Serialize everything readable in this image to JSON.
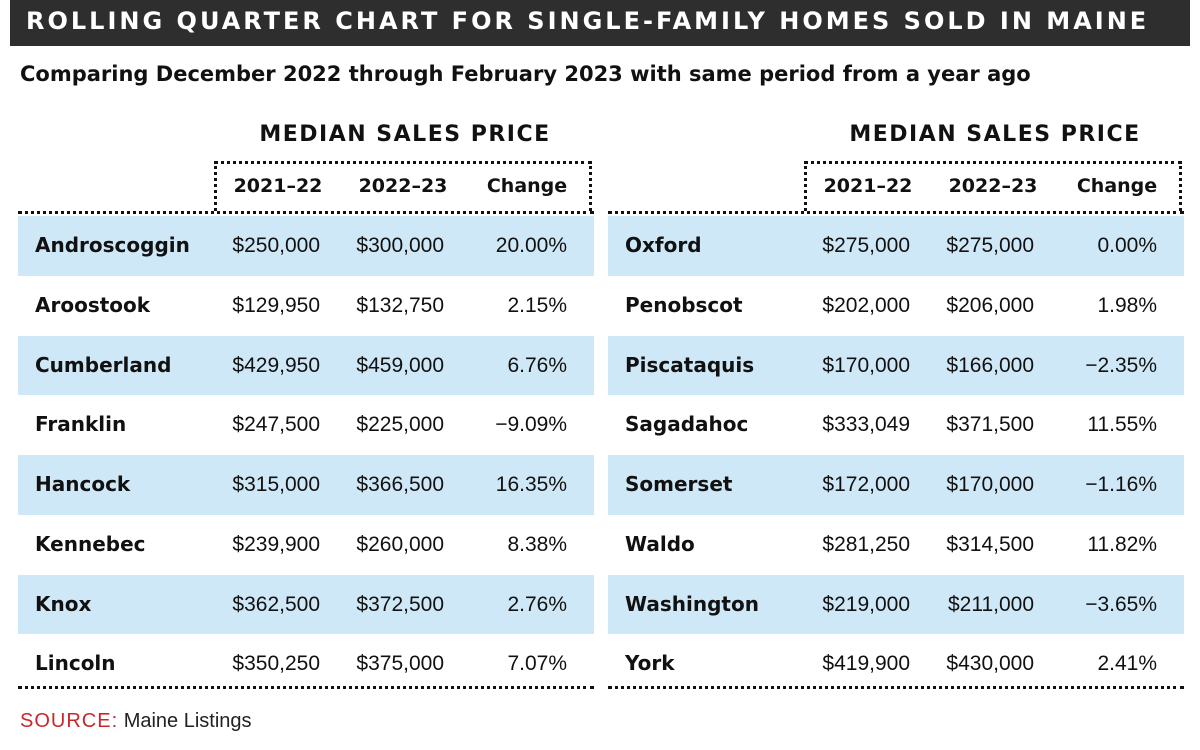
{
  "banner": {
    "title": "ROLLING QUARTER CHART FOR SINGLE-FAMILY HOMES SOLD IN MAINE"
  },
  "subtitle": "Comparing December 2022 through February 2023 with same period from a year ago",
  "colors": {
    "banner_bg": "#2e2e2e",
    "row_shade": "#cfe8f7",
    "source_label": "#c8282d"
  },
  "chart_data": {
    "type": "table",
    "title": "ROLLING QUARTER CHART FOR SINGLE-FAMILY HOMES SOLD IN MAINE",
    "subtitle": "Comparing December 2022 through February 2023 with same period from a year ago",
    "group_title": "MEDIAN SALES PRICE",
    "columns": [
      "2021–22",
      "2022–23",
      "Change"
    ],
    "tables": [
      {
        "group_title": "MEDIAN SALES PRICE",
        "columns": [
          "2021–22",
          "2022–23",
          "Change"
        ],
        "rows": [
          {
            "county": "Androscoggin",
            "p1": "$250,000",
            "p2": "$300,000",
            "change": "20.00%"
          },
          {
            "county": "Aroostook",
            "p1": "$129,950",
            "p2": "$132,750",
            "change": "2.15%"
          },
          {
            "county": "Cumberland",
            "p1": "$429,950",
            "p2": "$459,000",
            "change": "6.76%"
          },
          {
            "county": "Franklin",
            "p1": "$247,500",
            "p2": "$225,000",
            "change": "−9.09%"
          },
          {
            "county": "Hancock",
            "p1": "$315,000",
            "p2": "$366,500",
            "change": "16.35%"
          },
          {
            "county": "Kennebec",
            "p1": "$239,900",
            "p2": "$260,000",
            "change": "8.38%"
          },
          {
            "county": "Knox",
            "p1": "$362,500",
            "p2": "$372,500",
            "change": "2.76%"
          },
          {
            "county": "Lincoln",
            "p1": "$350,250",
            "p2": "$375,000",
            "change": "7.07%"
          }
        ]
      },
      {
        "group_title": "MEDIAN SALES PRICE",
        "columns": [
          "2021–22",
          "2022–23",
          "Change"
        ],
        "rows": [
          {
            "county": "Oxford",
            "p1": "$275,000",
            "p2": "$275,000",
            "change": "0.00%"
          },
          {
            "county": "Penobscot",
            "p1": "$202,000",
            "p2": "$206,000",
            "change": "1.98%"
          },
          {
            "county": "Piscataquis",
            "p1": "$170,000",
            "p2": "$166,000",
            "change": "−2.35%"
          },
          {
            "county": "Sagadahoc",
            "p1": "$333,049",
            "p2": "$371,500",
            "change": "11.55%"
          },
          {
            "county": "Somerset",
            "p1": "$172,000",
            "p2": "$170,000",
            "change": "−1.16%"
          },
          {
            "county": "Waldo",
            "p1": "$281,250",
            "p2": "$314,500",
            "change": "11.82%"
          },
          {
            "county": "Washington",
            "p1": "$219,000",
            "p2": "$211,000",
            "change": "−3.65%"
          },
          {
            "county": "York",
            "p1": "$419,900",
            "p2": "$430,000",
            "change": "2.41%"
          }
        ]
      }
    ]
  },
  "source": {
    "label": "SOURCE:",
    "value": "Maine Listings"
  }
}
